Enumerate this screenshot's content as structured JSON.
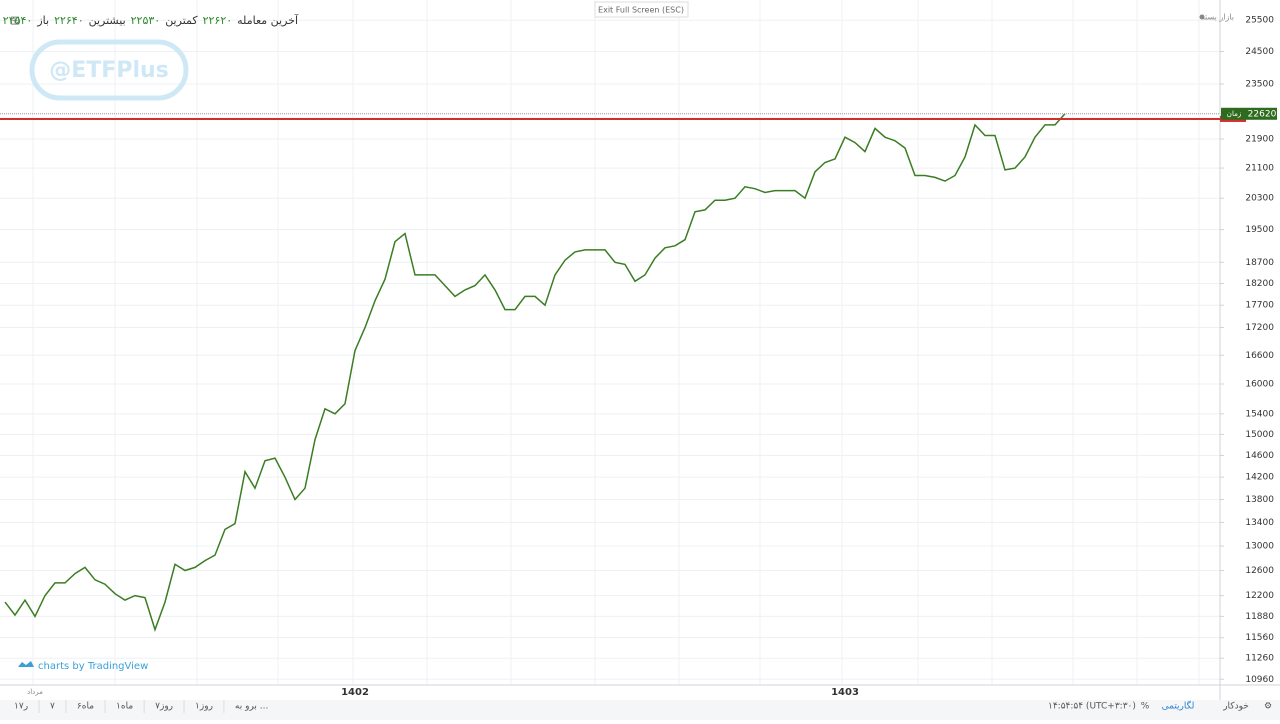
{
  "chart_data": {
    "type": "line",
    "header": [
      {
        "label": "باز",
        "value": "۲۲۵۴۰"
      },
      {
        "label": "بیشترین",
        "value": "۲۲۶۴۰"
      },
      {
        "label": "کمترین",
        "value": "۲۲۵۳۰"
      },
      {
        "label": "آخرین معامله",
        "value": "۲۲۶۲۰"
      }
    ],
    "status": "بازار بسته",
    "watermark": "@ETFPlus",
    "credit": "charts by TradingView",
    "categories": [
      null,
      null,
      null,
      "مرداد",
      null,
      null,
      null,
      null,
      null,
      null,
      null,
      null,
      null,
      null,
      null,
      null,
      null,
      null,
      null,
      null,
      null,
      null,
      null,
      null,
      null,
      null,
      null,
      null,
      null,
      null,
      null,
      null,
      null,
      null,
      null,
      "1402",
      null,
      null,
      null,
      null,
      null,
      null,
      null,
      null,
      null,
      null,
      null,
      null,
      null,
      null,
      null,
      null,
      null,
      null,
      null,
      null,
      null,
      null,
      null,
      null,
      null,
      null,
      null,
      null,
      null,
      null,
      null,
      null,
      null,
      null,
      null,
      null,
      null,
      null,
      null,
      null,
      null,
      null,
      null,
      null,
      null,
      null,
      null,
      null,
      "1403",
      null,
      null,
      null,
      null,
      null,
      null,
      null,
      null,
      null,
      null,
      null,
      null,
      null,
      null,
      null,
      null,
      null,
      null,
      null,
      null,
      null,
      null
    ],
    "values": [
      12100,
      11900,
      12130,
      11880,
      12200,
      12400,
      12400,
      12550,
      12650,
      12450,
      12380,
      12230,
      12130,
      12200,
      12170,
      11680,
      12100,
      12700,
      12600,
      12650,
      12760,
      12850,
      13280,
      13380,
      14300,
      14000,
      14500,
      14550,
      14200,
      13800,
      14000,
      14900,
      15500,
      15400,
      15600,
      16700,
      17200,
      17800,
      18300,
      19200,
      19400,
      18400,
      18400,
      18400,
      18150,
      17900,
      18050,
      18150,
      18400,
      18050,
      17600,
      17600,
      17900,
      17900,
      17700,
      18400,
      18750,
      18950,
      19000,
      19000,
      19000,
      18700,
      18650,
      18250,
      18400,
      18800,
      19050,
      19100,
      19250,
      19950,
      20000,
      20250,
      20250,
      20300,
      20600,
      20550,
      20450,
      20500,
      20500,
      20500,
      20300,
      21000,
      21250,
      21350,
      21950,
      21800,
      21550,
      22200,
      21950,
      21850,
      21650,
      20900,
      20900,
      20850,
      20750,
      20900,
      21400,
      22300,
      22000,
      22000,
      21050,
      21100,
      21400,
      21950,
      22300,
      22300,
      22620
    ],
    "color": "#3a7d22",
    "log_scale": true,
    "ylim": [
      10880,
      26170
    ],
    "yticks": [
      10960,
      11260,
      11560,
      11880,
      12200,
      12600,
      13000,
      13400,
      13800,
      14200,
      14600,
      15000,
      15400,
      16000,
      16600,
      17200,
      17700,
      18200,
      18700,
      19500,
      20300,
      21100,
      21900,
      23500,
      24500,
      25500
    ],
    "grid": true,
    "last_price": {
      "value": 22620,
      "tag": "زمان",
      "color": "#2e6b1e"
    },
    "reference_line": {
      "value": 22470,
      "color": "#d32f2f"
    }
  },
  "top_button": "Exit Full Screen (ESC)",
  "toolbar": {
    "ranges": [
      "۱ر۷",
      "۷",
      "ماه۶",
      "ماه۱",
      "روز۷",
      "روز۱"
    ],
    "go_to": "برو به ...",
    "time": "۱۴:۵۴:۵۴ (UTC+۳:۳۰)",
    "options": [
      "%",
      "لگاریتمی",
      "خودکار"
    ]
  }
}
